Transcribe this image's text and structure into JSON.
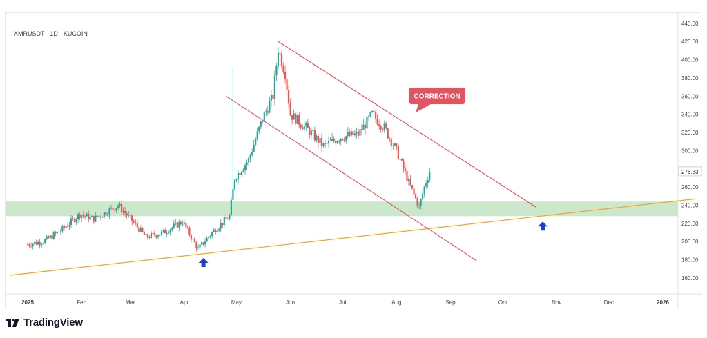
{
  "header": {
    "symbol": "XMRUSDT · 1D · KUCOIN"
  },
  "brand": {
    "name": "TradingView",
    "logo_icon": "tradingview-logo-icon"
  },
  "annotation": {
    "label": "CORRECTION",
    "color": "#e15562"
  },
  "colors": {
    "up": "#26a69a",
    "down": "#ef5350",
    "support_zone": "#c8e6c9",
    "trendline": "#f7a21b",
    "channel": "#f23645",
    "arrow": "#1e40c8"
  },
  "chart_data": {
    "type": "candlestick",
    "title": "",
    "symbol": "XMRUSDT",
    "interval": "1D",
    "exchange": "KUCOIN",
    "last_price": "276.83",
    "y_axis": {
      "ticks": [
        "440.00",
        "420.00",
        "400.00",
        "380.00",
        "360.00",
        "340.00",
        "320.00",
        "300.00",
        "280.00",
        "260.00",
        "240.00",
        "220.00",
        "200.00",
        "180.00",
        "160.00"
      ],
      "ylim": [
        140,
        445
      ]
    },
    "x_axis": {
      "ticks": [
        "2025",
        "Feb",
        "Mar",
        "Apr",
        "May",
        "Jun",
        "Jul",
        "Aug",
        "Sep",
        "Oct",
        "Nov",
        "Dec",
        "2026"
      ]
    },
    "grid": false,
    "price_path": [
      [
        "2025-01-01",
        197
      ],
      [
        "2025-01-10",
        200
      ],
      [
        "2025-01-20",
        212
      ],
      [
        "2025-01-31",
        230
      ],
      [
        "2025-02-08",
        225
      ],
      [
        "2025-02-15",
        232
      ],
      [
        "2025-02-22",
        240
      ],
      [
        "2025-03-01",
        225
      ],
      [
        "2025-03-10",
        205
      ],
      [
        "2025-03-20",
        210
      ],
      [
        "2025-03-31",
        222
      ],
      [
        "2025-04-05",
        205
      ],
      [
        "2025-04-09",
        192
      ],
      [
        "2025-04-18",
        212
      ],
      [
        "2025-04-27",
        228
      ],
      [
        "2025-04-30",
        270
      ],
      [
        "2025-05-08",
        290
      ],
      [
        "2025-05-16",
        335
      ],
      [
        "2025-05-22",
        360
      ],
      [
        "2025-05-25",
        412
      ],
      [
        "2025-05-29",
        385
      ],
      [
        "2025-06-01",
        340
      ],
      [
        "2025-06-10",
        325
      ],
      [
        "2025-06-20",
        305
      ],
      [
        "2025-06-30",
        315
      ],
      [
        "2025-07-10",
        318
      ],
      [
        "2025-07-18",
        340
      ],
      [
        "2025-07-25",
        325
      ],
      [
        "2025-08-01",
        300
      ],
      [
        "2025-08-08",
        265
      ],
      [
        "2025-08-14",
        238
      ],
      [
        "2025-08-17",
        260
      ],
      [
        "2025-08-20",
        277
      ]
    ],
    "support_zone": {
      "low": 228,
      "high": 244
    },
    "trendline": {
      "from": [
        "2025-01-01",
        163
      ],
      "to": [
        "2026-01-20",
        247
      ]
    },
    "channel": {
      "upper": {
        "from": [
          "2025-05-25",
          420
        ],
        "to": [
          "2025-10-20",
          238
        ]
      },
      "lower": {
        "from": [
          "2025-04-25",
          360
        ],
        "to": [
          "2025-09-16",
          179
        ]
      }
    },
    "arrows": [
      {
        "date": "2025-04-12",
        "price": 182
      },
      {
        "date": "2025-10-24",
        "price": 222
      }
    ]
  }
}
